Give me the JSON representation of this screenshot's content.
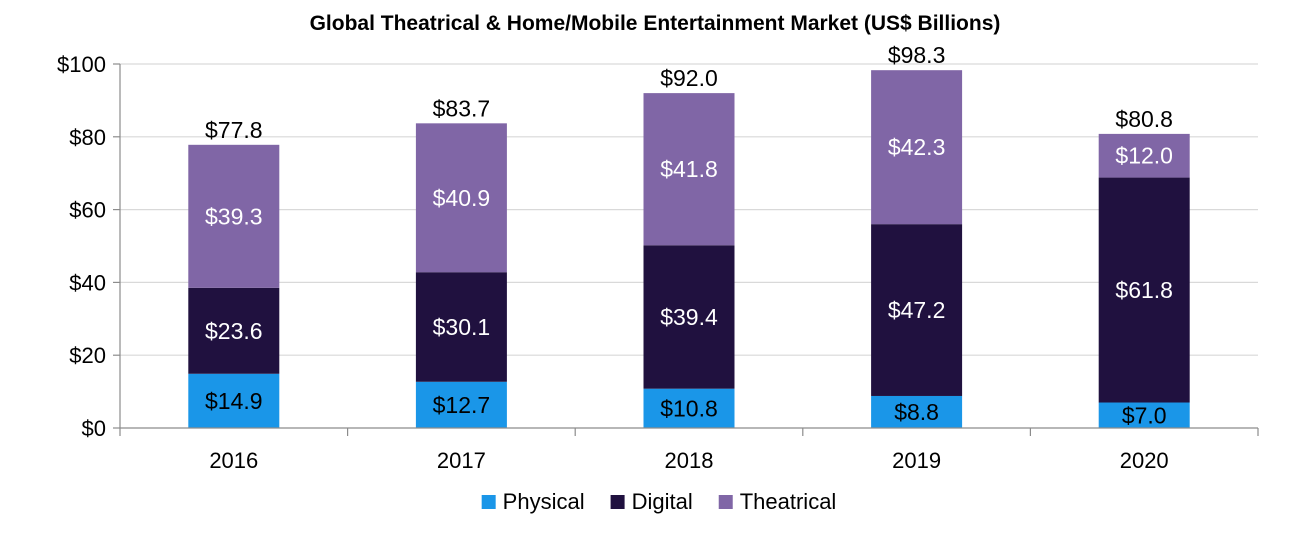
{
  "chart_data": {
    "type": "bar",
    "stacked": true,
    "title": "Global Theatrical & Home/Mobile Entertainment Market (US$ Billions)",
    "xlabel": "",
    "ylabel": "",
    "categories": [
      "2016",
      "2017",
      "2018",
      "2019",
      "2020"
    ],
    "y_ticks": [
      "$0",
      "$20",
      "$40",
      "$60",
      "$80",
      "$100"
    ],
    "y_tick_values": [
      0,
      20,
      40,
      60,
      80,
      100
    ],
    "ylim": [
      0,
      100
    ],
    "grid": true,
    "legend_position": "bottom",
    "series": [
      {
        "name": "Physical",
        "color": "#1a96e8",
        "label_color": "#000000",
        "values": [
          14.9,
          12.7,
          10.8,
          8.8,
          7.0
        ],
        "labels": [
          "$14.9",
          "$12.7",
          "$10.8",
          "$8.8",
          "$7.0"
        ]
      },
      {
        "name": "Digital",
        "color": "#20113f",
        "label_color": "#ffffff",
        "values": [
          23.6,
          30.1,
          39.4,
          47.2,
          61.8
        ],
        "labels": [
          "$23.6",
          "$30.1",
          "$39.4",
          "$47.2",
          "$61.8"
        ]
      },
      {
        "name": "Theatrical",
        "color": "#8066a6",
        "label_color": "#ffffff",
        "values": [
          39.3,
          40.9,
          41.8,
          42.3,
          12.0
        ],
        "labels": [
          "$39.3",
          "$40.9",
          "$41.8",
          "$42.3",
          "$12.0"
        ]
      }
    ],
    "totals": [
      77.8,
      83.7,
      92.0,
      98.3,
      80.8
    ],
    "total_labels": [
      "$77.8",
      "$83.7",
      "$92.0",
      "$98.3",
      "$80.8"
    ]
  }
}
